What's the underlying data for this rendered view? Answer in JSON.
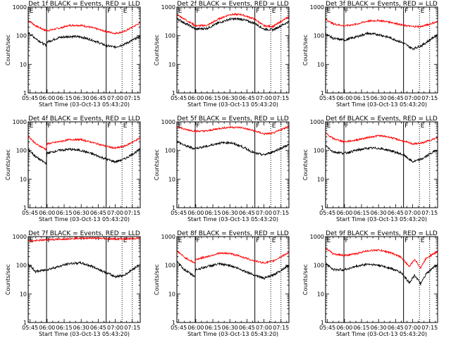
{
  "chart_data": {
    "type": "line",
    "y_scale": "log",
    "ylim": [
      1,
      1000
    ],
    "y_ticks": [
      "1",
      "10",
      "100",
      "1000"
    ],
    "ylabel": "Counts/sec",
    "xlabel": "Start Time (03-Oct-13 05:43:20)",
    "x_range": [
      "05:43:20",
      "07:22:00"
    ],
    "x_ticks": [
      {
        "label": "05:45",
        "t": "05:45"
      },
      {
        "label": "06:00",
        "t": "06:00"
      },
      {
        "label": "06:15",
        "t": "06:15"
      },
      {
        "label": "06:30",
        "t": "06:30"
      },
      {
        "label": "06:45",
        "t": "06:45"
      },
      {
        "label": "07:00",
        "t": "07:00"
      },
      {
        "label": "07:15",
        "t": "07:15"
      }
    ],
    "markers": [
      {
        "label": "E",
        "t": "05:43:30",
        "style": "dotted"
      },
      {
        "label": "F",
        "t": "05:59:30",
        "style": "solid"
      },
      {
        "label": "F",
        "t": "06:52:00",
        "style": "solid"
      },
      {
        "label": "E",
        "t": "07:06:00",
        "style": "dotted"
      }
    ],
    "extra_lines": [
      {
        "t": "07:15:00",
        "style": "dotted"
      }
    ],
    "series_colors": {
      "events": "#000000",
      "lld": "#ff0000"
    },
    "panels": [
      {
        "title": "Det 1f BLACK = Events, RED = LLD",
        "events": {
          "t": [
            "05:43:20",
            "05:50",
            "05:59",
            "06:00",
            "06:10",
            "06:20",
            "06:30",
            "06:40",
            "06:52",
            "07:00",
            "07:08",
            "07:22"
          ],
          "values": [
            130,
            80,
            45,
            60,
            85,
            95,
            90,
            70,
            45,
            40,
            50,
            95
          ]
        },
        "lld": {
          "t": [
            "05:43:20",
            "05:50",
            "05:59",
            "06:00",
            "06:10",
            "06:20",
            "06:30",
            "06:40",
            "06:52",
            "07:00",
            "07:08",
            "07:22"
          ],
          "values": [
            350,
            220,
            150,
            150,
            180,
            230,
            230,
            190,
            140,
            120,
            140,
            280
          ]
        }
      },
      {
        "title": "Det 2f BLACK = Events, RED = LLD",
        "events": {
          "t": [
            "05:43:20",
            "05:50",
            "06:00",
            "06:10",
            "06:20",
            "06:30",
            "06:40",
            "06:52",
            "07:00",
            "07:08",
            "07:22"
          ],
          "values": [
            400,
            280,
            170,
            180,
            280,
            380,
            380,
            270,
            170,
            160,
            310
          ]
        },
        "lld": {
          "t": [
            "05:43:20",
            "05:50",
            "06:00",
            "06:10",
            "06:20",
            "06:30",
            "06:40",
            "06:52",
            "07:00",
            "07:08",
            "07:22"
          ],
          "values": [
            550,
            380,
            220,
            230,
            380,
            550,
            550,
            380,
            220,
            210,
            460
          ]
        }
      },
      {
        "title": "Det 3f BLACK = Events, RED = LLD",
        "events": {
          "t": [
            "05:43:20",
            "05:50",
            "06:00",
            "06:10",
            "06:20",
            "06:30",
            "06:40",
            "06:52",
            "07:00",
            "07:08",
            "07:22"
          ],
          "values": [
            120,
            80,
            70,
            90,
            120,
            110,
            85,
            55,
            35,
            45,
            110
          ]
        },
        "lld": {
          "t": [
            "05:43:20",
            "05:50",
            "06:00",
            "06:10",
            "06:20",
            "06:30",
            "06:40",
            "06:52",
            "07:00",
            "07:08",
            "07:22"
          ],
          "values": [
            380,
            260,
            220,
            250,
            320,
            340,
            300,
            230,
            210,
            210,
            310
          ]
        }
      },
      {
        "title": "Det 4f BLACK = Events, RED = LLD",
        "events": {
          "t": [
            "05:43:20",
            "05:50",
            "05:59",
            "06:00",
            "06:10",
            "06:20",
            "06:30",
            "06:40",
            "06:52",
            "07:00",
            "07:08",
            "07:22"
          ],
          "values": [
            110,
            60,
            35,
            80,
            100,
            110,
            100,
            75,
            50,
            40,
            50,
            110
          ]
        },
        "lld": {
          "t": [
            "05:43:20",
            "05:50",
            "05:59",
            "06:00",
            "06:10",
            "06:20",
            "06:30",
            "06:40",
            "06:52",
            "07:00",
            "07:08",
            "07:22"
          ],
          "values": [
            320,
            170,
            110,
            170,
            200,
            240,
            240,
            190,
            140,
            120,
            140,
            270
          ]
        }
      },
      {
        "title": "Det 5f BLACK = Events, RED = LLD",
        "events": {
          "t": [
            "05:43:20",
            "05:50",
            "05:59",
            "06:00",
            "06:10",
            "06:20",
            "06:30",
            "06:40",
            "06:52",
            "07:00",
            "07:08",
            "07:22"
          ],
          "values": [
            210,
            150,
            115,
            120,
            140,
            180,
            190,
            140,
            80,
            70,
            90,
            160
          ]
        },
        "lld": {
          "t": [
            "05:43:20",
            "05:50",
            "06:00",
            "06:10",
            "06:20",
            "06:30",
            "06:40",
            "06:52",
            "07:00",
            "07:08",
            "07:22"
          ],
          "values": [
            700,
            550,
            470,
            480,
            580,
            650,
            630,
            480,
            380,
            400,
            700
          ]
        }
      },
      {
        "title": "Det 6f BLACK = Events, RED = LLD",
        "events": {
          "t": [
            "05:43:20",
            "05:50",
            "06:00",
            "06:10",
            "06:20",
            "06:30",
            "06:40",
            "06:52",
            "07:00",
            "07:08",
            "07:22"
          ],
          "values": [
            150,
            90,
            80,
            100,
            120,
            120,
            100,
            70,
            40,
            50,
            110
          ]
        },
        "lld": {
          "t": [
            "05:43:20",
            "05:50",
            "06:00",
            "06:10",
            "06:20",
            "06:30",
            "06:40",
            "06:52",
            "07:00",
            "07:08",
            "07:22"
          ],
          "values": [
            400,
            260,
            200,
            230,
            280,
            330,
            290,
            210,
            170,
            180,
            280
          ]
        }
      },
      {
        "title": "Det 7f BLACK = Events, RED = LLD",
        "events": {
          "t": [
            "05:43:20",
            "05:50",
            "06:00",
            "06:10",
            "06:20",
            "06:30",
            "06:40",
            "06:52",
            "07:00",
            "07:08",
            "07:22"
          ],
          "values": [
            110,
            60,
            70,
            90,
            115,
            120,
            90,
            55,
            40,
            45,
            110
          ]
        },
        "lld": {
          "t": [
            "05:43:20",
            "05:50",
            "06:00",
            "06:10",
            "06:20",
            "06:30",
            "06:40",
            "06:52",
            "07:00",
            "07:08",
            "07:22"
          ],
          "values": [
            700,
            720,
            780,
            800,
            850,
            880,
            880,
            850,
            830,
            830,
            880
          ]
        }
      },
      {
        "title": "Det 8f BLACK = Events, RED = LLD",
        "events": {
          "t": [
            "05:43:20",
            "05:50",
            "05:59",
            "06:00",
            "06:10",
            "06:20",
            "06:30",
            "06:40",
            "06:52",
            "07:00",
            "07:08",
            "07:22"
          ],
          "values": [
            130,
            70,
            40,
            70,
            90,
            110,
            100,
            70,
            45,
            35,
            45,
            100
          ]
        },
        "lld": {
          "t": [
            "05:43:20",
            "05:50",
            "05:59",
            "06:00",
            "06:10",
            "06:20",
            "06:30",
            "06:40",
            "06:52",
            "07:00",
            "07:08",
            "07:22"
          ],
          "values": [
            320,
            190,
            120,
            160,
            200,
            260,
            260,
            200,
            140,
            120,
            140,
            280
          ]
        }
      },
      {
        "title": "Det 9f BLACK = Events, RED = LLD",
        "events": {
          "t": [
            "05:43:20",
            "05:50",
            "06:00",
            "06:10",
            "06:20",
            "06:30",
            "06:40",
            "06:50",
            "06:57",
            "07:02",
            "07:07",
            "07:12",
            "07:22"
          ],
          "values": [
            120,
            70,
            70,
            90,
            110,
            100,
            80,
            55,
            25,
            45,
            22,
            50,
            110
          ]
        },
        "lld": {
          "t": [
            "05:43:20",
            "05:50",
            "06:00",
            "06:10",
            "06:20",
            "06:30",
            "06:40",
            "06:50",
            "06:57",
            "07:02",
            "07:07",
            "07:12",
            "07:22"
          ],
          "values": [
            400,
            250,
            220,
            250,
            320,
            340,
            280,
            190,
            90,
            160,
            80,
            180,
            300
          ]
        }
      }
    ]
  }
}
